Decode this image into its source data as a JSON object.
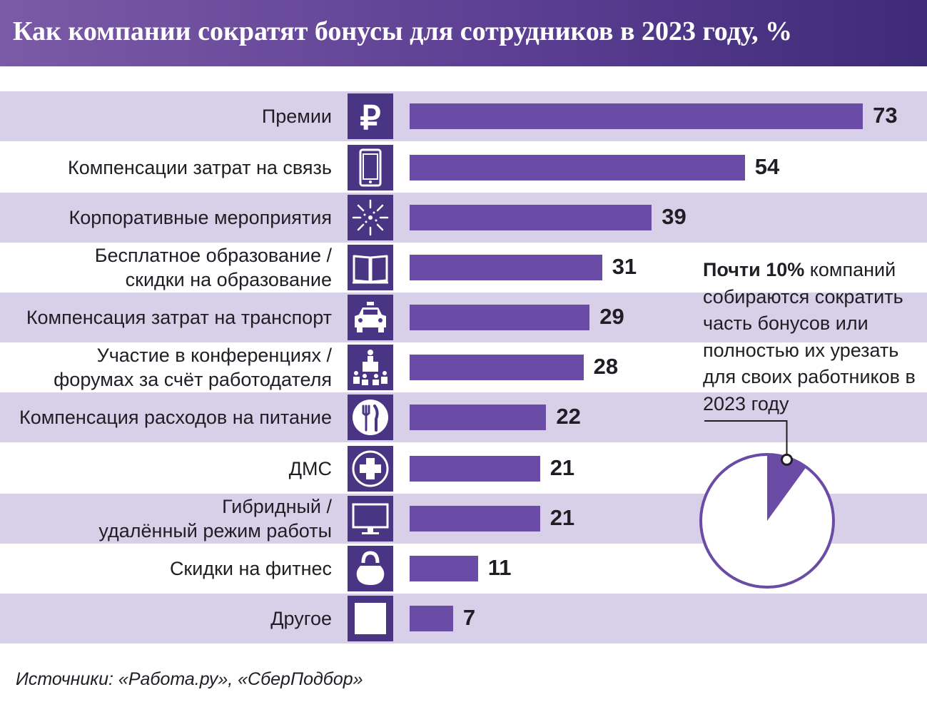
{
  "title": "Как компании сократят бонусы для сотрудников в 2023 году, %",
  "chart_data": {
    "type": "bar",
    "orientation": "horizontal",
    "title": "Как компании сократят бонусы для сотрудников в 2023 году, %",
    "categories": [
      "Премии",
      "Компенсации затрат на связь",
      "Корпоративные мероприятия",
      "Бесплатное образование /\nскидки на образование",
      "Компенсация затрат на транспорт",
      "Участие в конференциях /\nфорумах за счёт работодателя",
      "Компенсация расходов на питание",
      "ДМС",
      "Гибридный /\nудалённый режим работы",
      "Скидки на фитнес",
      "Другое"
    ],
    "values": [
      73,
      54,
      39,
      31,
      29,
      28,
      22,
      21,
      21,
      11,
      7
    ],
    "icons": [
      "ruble-icon",
      "phone-icon",
      "fireworks-icon",
      "book-icon",
      "taxi-icon",
      "conference-icon",
      "plate-cutlery-icon",
      "medical-cross-icon",
      "monitor-icon",
      "kettlebell-icon",
      "blank-square-icon"
    ],
    "bar_color": "#6a4ba6",
    "icon_bg_color": "#4a3484",
    "row_stripe_color": "#d8d0e8"
  },
  "note": {
    "bold": "Почти 10%",
    "text": " компаний собираются сократить часть бонусов или полностью их урезать для своих работников в 2023 году"
  },
  "pie": {
    "value": 10,
    "total": 100,
    "color": "#6a4ba6"
  },
  "source": "Источники: «Работа.ру», «СберПодбор»"
}
